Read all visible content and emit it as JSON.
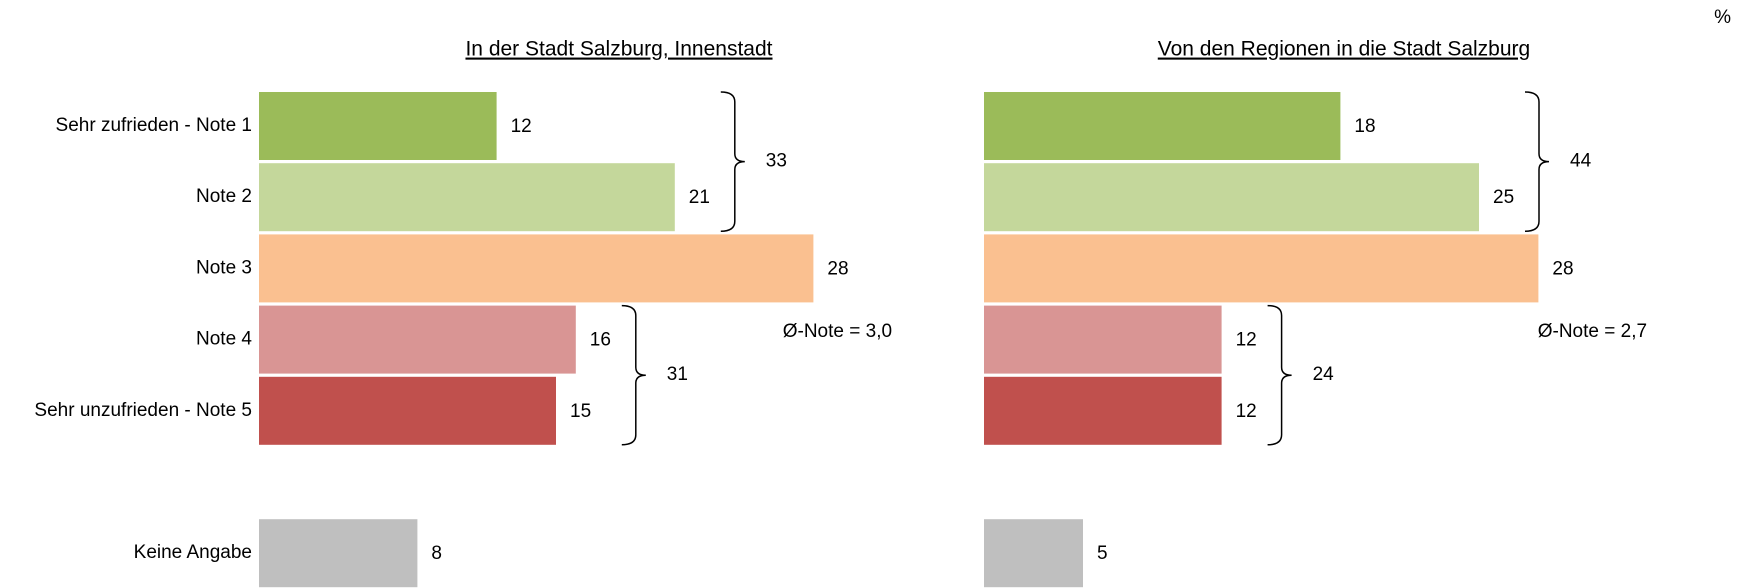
{
  "unit": "%",
  "chart_data": [
    {
      "type": "bar",
      "orientation": "horizontal",
      "title": "In der Stadt Salzburg, Innenstadt",
      "categories": [
        "Sehr zufrieden - Note 1",
        "Note 2",
        "Note 3",
        "Note 4",
        "Sehr unzufrieden - Note 5",
        "Keine Angabe"
      ],
      "values": [
        12,
        21,
        28,
        16,
        15,
        8
      ],
      "colors": [
        "#9bbb59",
        "#c4d79b",
        "#fac090",
        "#d99594",
        "#c0504d",
        "#bfbfbf"
      ],
      "group_totals": [
        33,
        31
      ],
      "annotation": "Ø-Note = 3,0",
      "xlim": [
        0,
        30
      ]
    },
    {
      "type": "bar",
      "orientation": "horizontal",
      "title": "Von den Regionen in die Stadt Salzburg",
      "values": [
        18,
        25,
        28,
        12,
        12,
        5
      ],
      "colors": [
        "#9bbb59",
        "#c4d79b",
        "#fac090",
        "#d99594",
        "#c0504d",
        "#bfbfbf"
      ],
      "group_totals": [
        44,
        24
      ],
      "annotation": "Ø-Note = 2,7",
      "xlim": [
        0,
        30
      ]
    }
  ]
}
